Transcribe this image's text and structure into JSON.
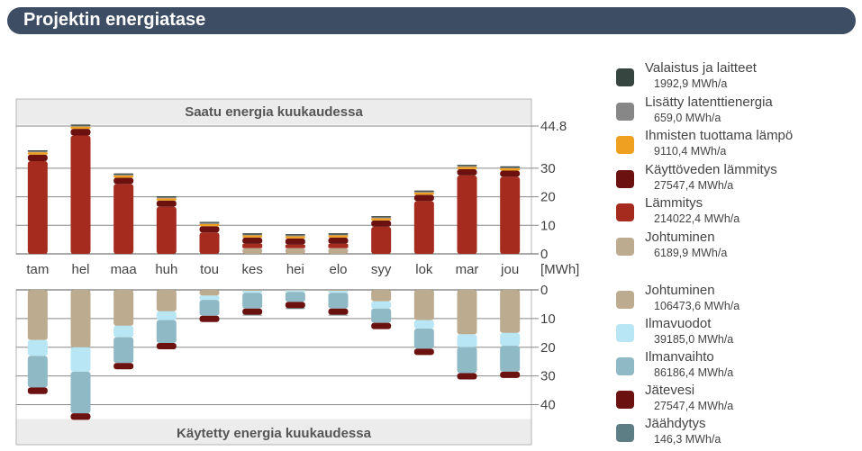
{
  "header": {
    "title": "Projektin energiatase"
  },
  "chart_data": [
    {
      "type": "bar",
      "stacked": true,
      "title": "Saatu energia kuukaudessa",
      "ylabel": "[MWh]",
      "ylim": [
        0,
        44.8
      ],
      "yticks": [
        0,
        10,
        20,
        30,
        44.8
      ],
      "grid": true,
      "categories": [
        "tam",
        "hel",
        "maa",
        "huh",
        "tou",
        "kes",
        "hei",
        "elo",
        "syy",
        "lok",
        "mar",
        "jou"
      ],
      "series": [
        {
          "name": "Johtuminen",
          "color": "#bcab8e",
          "values": [
            0,
            0,
            0,
            0,
            0,
            2.0,
            2.0,
            2.0,
            0,
            0,
            0,
            0
          ]
        },
        {
          "name": "Lämmitys",
          "color": "#a42b1e",
          "values": [
            32.5,
            41.5,
            24.5,
            16.5,
            7.5,
            1.5,
            1.2,
            1.5,
            9.5,
            18.5,
            27.5,
            27.0
          ]
        },
        {
          "name": "Käyttöveden lämmitys",
          "color": "#6b1110",
          "values": [
            2.3,
            2.3,
            2.2,
            2.2,
            2.2,
            2.2,
            2.2,
            2.2,
            2.2,
            2.2,
            2.2,
            2.2
          ]
        },
        {
          "name": "Ihmisten tuottama lämpö",
          "color": "#f0a020",
          "values": [
            0.8,
            0.8,
            0.8,
            0.8,
            0.8,
            0.8,
            0.8,
            0.8,
            0.8,
            0.8,
            0.8,
            0.8
          ]
        },
        {
          "name": "Lisätty latenttienergia",
          "color": "#878787",
          "values": [
            0.3,
            0.3,
            0.3,
            0.3,
            0.3,
            0.3,
            0.3,
            0.3,
            0.3,
            0.3,
            0.3,
            0.3
          ]
        },
        {
          "name": "Valaistus ja laitteet",
          "color": "#36453f",
          "values": [
            0.4,
            0.4,
            0.4,
            0.4,
            0.4,
            0.4,
            0.4,
            0.4,
            0.4,
            0.4,
            0.4,
            0.4
          ]
        }
      ]
    },
    {
      "type": "bar",
      "stacked": true,
      "title": "Käytetty energia kuukaudessa",
      "ylim": [
        0,
        45
      ],
      "yticks": [
        0,
        10,
        20,
        30,
        40
      ],
      "grid": true,
      "categories": [
        "tam",
        "hel",
        "maa",
        "huh",
        "tou",
        "kes",
        "hei",
        "elo",
        "syy",
        "lok",
        "mar",
        "jou"
      ],
      "series": [
        {
          "name": "Johtuminen",
          "color": "#bcab8e",
          "values": [
            17.5,
            20.0,
            12.5,
            7.5,
            2.0,
            0.3,
            0.2,
            0.3,
            4.0,
            10.5,
            15.5,
            15.0
          ]
        },
        {
          "name": "Ilmavuodot",
          "color": "#b8e6f4",
          "values": [
            5.5,
            8.5,
            4.0,
            3.0,
            1.5,
            0.7,
            0.5,
            0.7,
            2.5,
            3.0,
            4.5,
            4.5
          ]
        },
        {
          "name": "Ilmanvaihto",
          "color": "#8fb9c4",
          "values": [
            11.0,
            14.5,
            9.0,
            8.0,
            5.5,
            5.5,
            3.5,
            5.5,
            5.0,
            7.0,
            9.0,
            9.0
          ]
        },
        {
          "name": "Jätevesi",
          "color": "#6b1110",
          "values": [
            2.3,
            2.3,
            2.2,
            2.2,
            2.2,
            2.2,
            2.2,
            2.2,
            2.2,
            2.2,
            2.2,
            2.2
          ]
        },
        {
          "name": "Jäähdytys",
          "color": "#5d7e84",
          "values": [
            0,
            0,
            0,
            0,
            0,
            0.1,
            0.2,
            0.1,
            0,
            0,
            0,
            0
          ]
        }
      ]
    }
  ],
  "legend": {
    "gained": [
      {
        "label": "Valaistus ja laitteet",
        "value": "1992,9 MWh/a",
        "color": "#36453f"
      },
      {
        "label": "Lisätty latenttienergia",
        "value": "659,0 MWh/a",
        "color": "#878787"
      },
      {
        "label": "Ihmisten tuottama lämpö",
        "value": "9110,4 MWh/a",
        "color": "#f0a020"
      },
      {
        "label": "Käyttöveden lämmitys",
        "value": "27547,4 MWh/a",
        "color": "#6b1110"
      },
      {
        "label": "Lämmitys",
        "value": "214022,4 MWh/a",
        "color": "#a42b1e"
      },
      {
        "label": "Johtuminen",
        "value": "6189,9 MWh/a",
        "color": "#bcab8e"
      }
    ],
    "used": [
      {
        "label": "Johtuminen",
        "value": "106473,6 MWh/a",
        "color": "#bcab8e"
      },
      {
        "label": "Ilmavuodot",
        "value": "39185,0 MWh/a",
        "color": "#b8e6f4"
      },
      {
        "label": "Ilmanvaihto",
        "value": "86186,4 MWh/a",
        "color": "#8fb9c4"
      },
      {
        "label": "Jätevesi",
        "value": "27547,4 MWh/a",
        "color": "#6b1110"
      },
      {
        "label": "Jäähdytys",
        "value": "146,3 MWh/a",
        "color": "#5d7e84"
      }
    ]
  }
}
